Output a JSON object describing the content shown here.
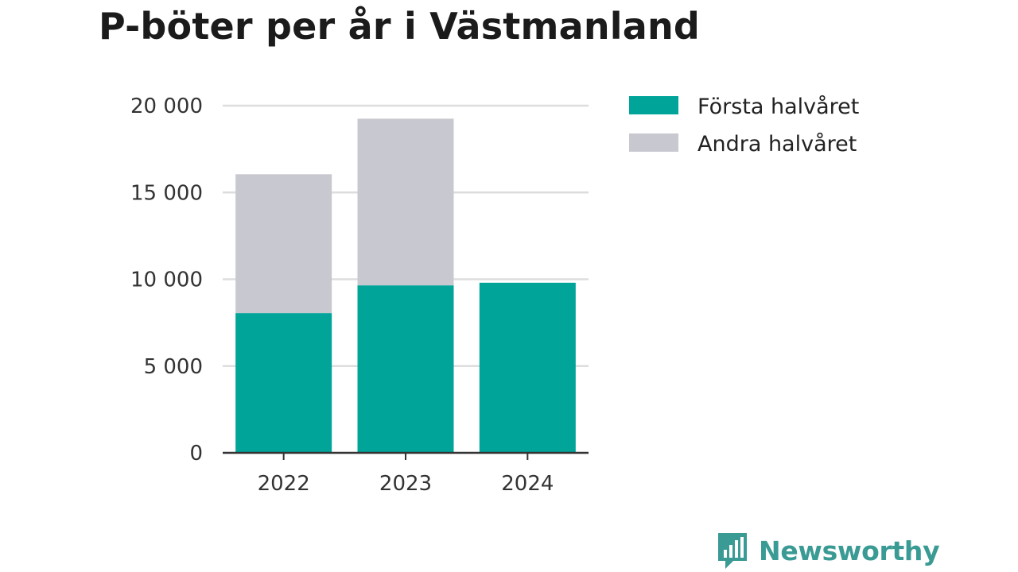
{
  "colors": {
    "first_half": "#00a499",
    "second_half": "#c8c8d0",
    "grid": "#dddddd",
    "axis": "#333333",
    "brand": "#3a9a94"
  },
  "brand": {
    "name": "Newsworthy",
    "icon": "bar-chart-speech-bubble-icon"
  },
  "chart_data": {
    "type": "bar",
    "stacked": true,
    "title": "P-böter per år i Västmanland",
    "xlabel": "",
    "ylabel": "",
    "categories": [
      "2022",
      "2023",
      "2024"
    ],
    "series": [
      {
        "name": "Första halvåret",
        "values": [
          8050,
          9650,
          9800
        ]
      },
      {
        "name": "Andra halvåret",
        "values": [
          8000,
          9600,
          null
        ]
      }
    ],
    "ylim": [
      0,
      20000
    ],
    "yticks": [
      0,
      5000,
      10000,
      15000,
      20000
    ],
    "ytick_labels": [
      "0",
      "5 000",
      "10 000",
      "15 000",
      "20 000"
    ],
    "grid": true,
    "legend_position": "top-right"
  }
}
